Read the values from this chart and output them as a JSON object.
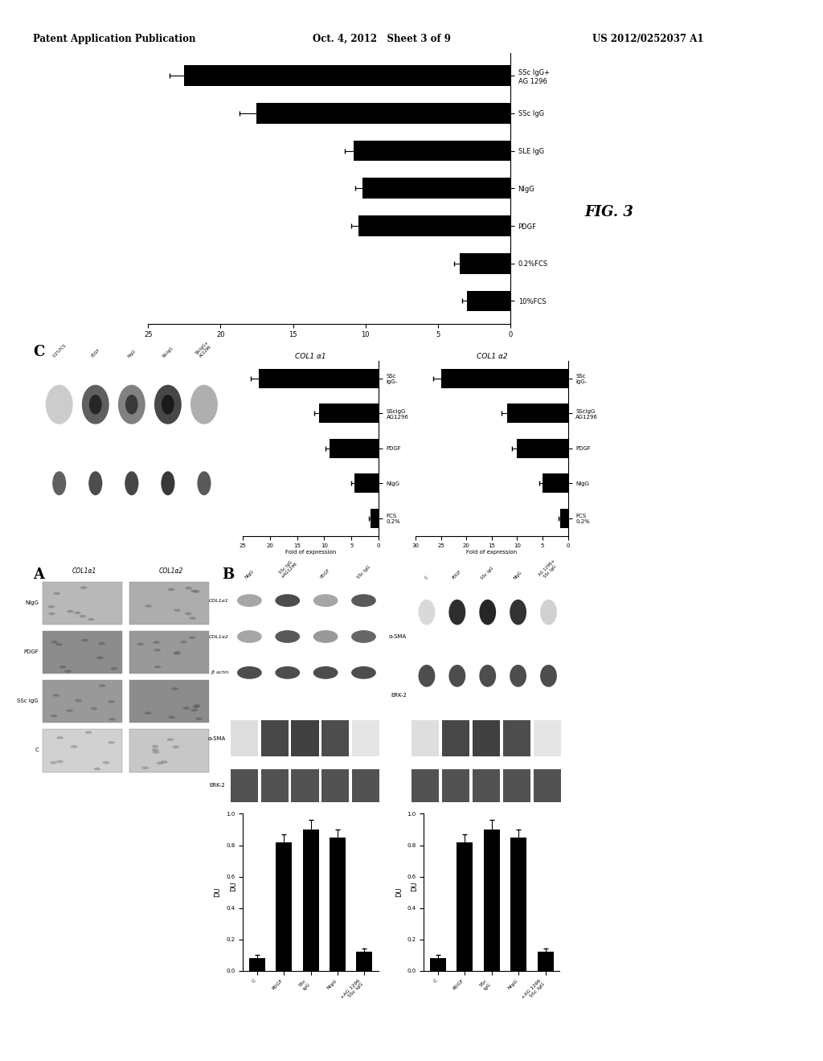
{
  "header_left": "Patent Application Publication",
  "header_middle": "Oct. 4, 2012   Sheet 3 of 9",
  "header_right": "US 2012/0252037 A1",
  "fig_label": "FIG. 3",
  "top_bar_chart": {
    "labels": [
      "10%FCS",
      "0.2%FCS",
      "PDGF",
      "NIgG",
      "SLE IgG",
      "SSc IgG",
      "SSc IgG+\nAG 1296"
    ],
    "values": [
      3.0,
      3.5,
      10.5,
      10.2,
      10.8,
      17.5,
      22.5
    ],
    "errors": [
      0.3,
      0.4,
      0.5,
      0.5,
      0.6,
      1.2,
      1.0
    ],
    "xlim": [
      0,
      25
    ],
    "xticks": [
      0,
      5,
      10,
      15,
      20,
      25
    ],
    "bar_color": "#000000",
    "bar_height": 0.55
  },
  "panel_C_bar_col1a1": {
    "labels": [
      "FCS\n0.2%",
      "NIgG",
      "PDGF",
      "SScIgG\nAG1296",
      "SSc\nIgG-"
    ],
    "values": [
      1.5,
      4.5,
      9.0,
      11.0,
      22.0
    ],
    "errors": [
      0.3,
      0.6,
      0.8,
      0.9,
      1.5
    ],
    "xlim": [
      0,
      25
    ],
    "xticks": [
      0,
      5,
      10,
      15,
      20,
      25
    ],
    "title": "COL1 α1",
    "ylabel": "Fold of expression"
  },
  "panel_C_bar_col1a2": {
    "labels": [
      "FCS\n0.2%",
      "NIgG",
      "PDGF",
      "SScIgG\nAG1296",
      "SSc\nIgG-"
    ],
    "values": [
      1.5,
      5.0,
      10.0,
      12.0,
      25.0
    ],
    "errors": [
      0.3,
      0.7,
      1.0,
      1.0,
      1.5
    ],
    "xlim": [
      0,
      30
    ],
    "xticks": [
      0,
      5,
      10,
      15,
      20,
      25,
      30
    ],
    "title": "COL1 α2",
    "ylabel": "Fold of expression"
  },
  "panel_B_bar_du": {
    "labels": [
      "C",
      "PDGF",
      "SSc\nIgG",
      "NIgG",
      "+AG 1296\nSSc IgG"
    ],
    "values": [
      0.08,
      0.82,
      0.9,
      0.85,
      0.12
    ],
    "errors": [
      0.02,
      0.05,
      0.06,
      0.05,
      0.02
    ],
    "ylim": [
      0,
      1.0
    ],
    "yticks": [
      0,
      0.2,
      0.4,
      0.6,
      0.8,
      1.0
    ],
    "ylabel": "DU"
  },
  "background_color": "#ffffff",
  "text_color": "#000000"
}
